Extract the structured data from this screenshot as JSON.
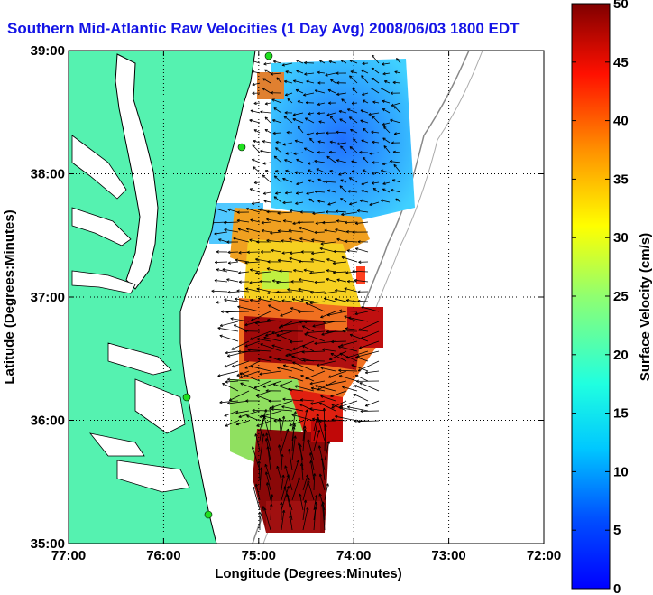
{
  "title": "Southern Mid-Atlantic Raw Velocities (1 Day Avg) 2008/06/03 1800 EDT",
  "map": {
    "xlabel": "Longitude (Degrees:Minutes)",
    "ylabel": "Latitude (Degrees:Minutes)",
    "lon_range": [
      -77,
      -72
    ],
    "lat_range": [
      35,
      39
    ],
    "x_ticks": [
      "77:00",
      "76:00",
      "75:00",
      "74:00",
      "73:00",
      "72:00"
    ],
    "y_ticks": [
      "35:00",
      "36:00",
      "37:00",
      "38:00",
      "39:00"
    ],
    "land_color": "#55f2b0",
    "grid": "dotted",
    "station_markers": 4
  },
  "colorbar": {
    "label": "Surface Velocity (cm/s)",
    "ticks": [
      "0",
      "5",
      "10",
      "15",
      "20",
      "25",
      "30",
      "35",
      "40",
      "45",
      "50"
    ],
    "min": 0,
    "max": 50,
    "colormap": "jet"
  }
}
